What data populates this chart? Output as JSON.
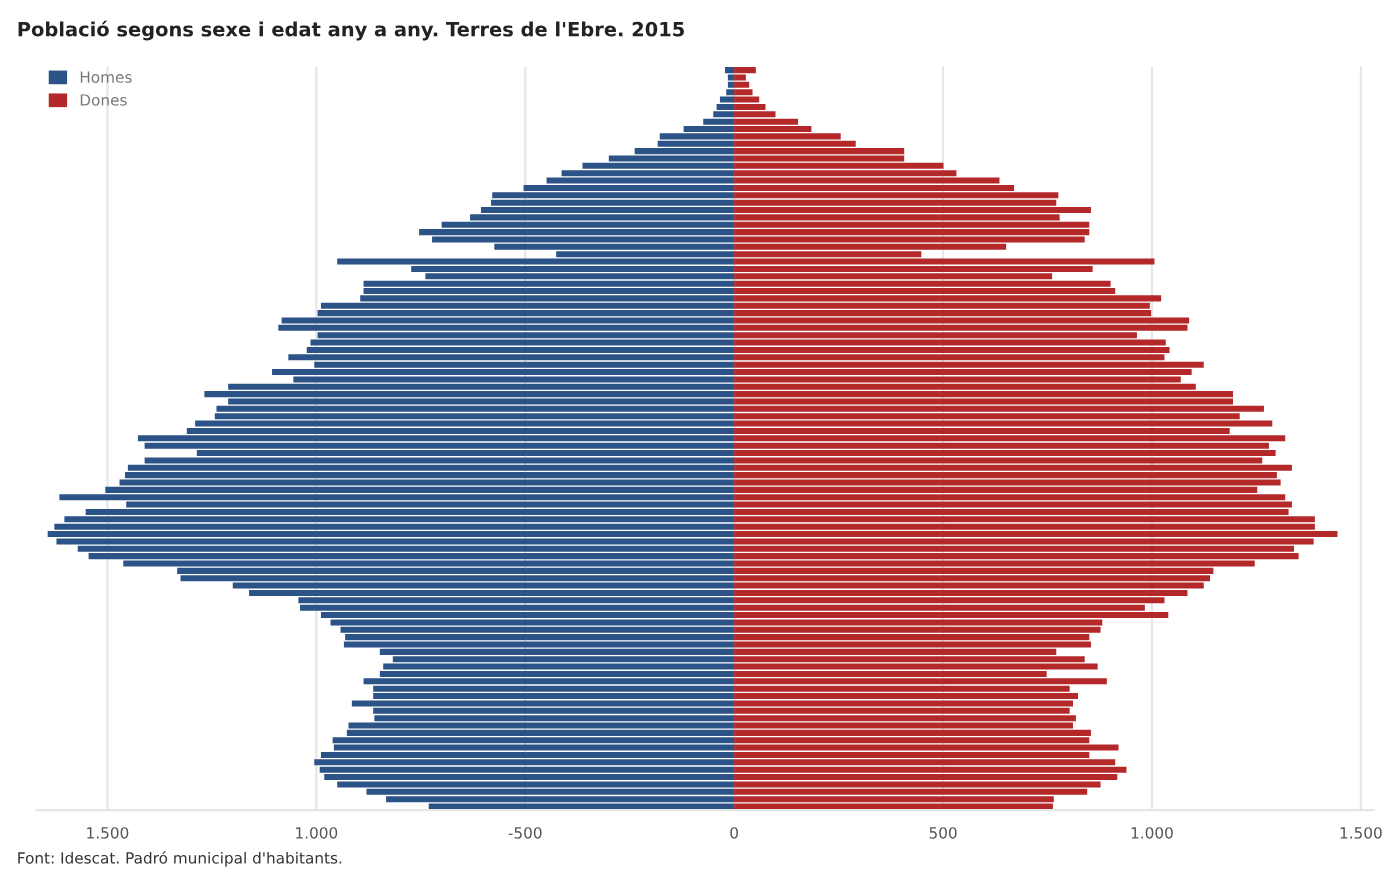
{
  "chart_data": {
    "type": "bar",
    "orientation": "horizontal",
    "title": "Població segons sexe i edat any a any. Terres de l'Ebre. 2015",
    "categories": [
      null,
      null,
      null,
      null,
      null,
      null,
      null,
      null,
      null,
      null,
      null,
      null,
      null,
      null,
      null,
      null,
      null,
      null,
      null,
      null,
      null,
      null,
      null,
      null,
      null,
      null,
      null,
      null,
      null,
      null,
      null,
      null,
      null,
      null,
      null,
      null,
      null,
      null,
      null,
      null,
      null,
      null,
      null,
      null,
      null,
      null,
      null,
      null,
      null,
      null,
      null,
      null,
      null,
      null,
      null,
      null,
      null,
      null,
      null,
      null,
      null,
      null,
      null,
      null,
      null,
      null,
      null,
      null,
      null,
      null,
      null,
      null,
      null,
      null,
      null,
      null,
      null,
      null,
      null,
      null,
      null,
      null,
      null,
      null,
      null,
      null,
      null,
      null,
      null,
      null,
      null,
      null,
      null,
      null,
      null,
      null,
      null,
      null,
      null,
      null,
      null
    ],
    "series": [
      {
        "name": "Homes",
        "color": "#2b5387",
        "values": [
          -22,
          -15,
          -15,
          -19,
          -34,
          -42,
          -50,
          -74,
          -121,
          -178,
          -183,
          -238,
          -300,
          -363,
          -413,
          -449,
          -504,
          -579,
          -582,
          -606,
          -632,
          -700,
          -754,
          -723,
          -574,
          -426,
          -950,
          -773,
          -739,
          -887,
          -887,
          -895,
          -989,
          -997,
          -1083,
          -1091,
          -997,
          -1014,
          -1023,
          -1067,
          -1005,
          -1106,
          -1055,
          -1211,
          -1268,
          -1211,
          -1239,
          -1243,
          -1290,
          -1310,
          -1427,
          -1411,
          -1286,
          -1411,
          -1451,
          -1458,
          -1471,
          -1505,
          -1615,
          -1455,
          -1552,
          -1603,
          -1627,
          -1643,
          -1622,
          -1571,
          -1545,
          -1462,
          -1333,
          -1325,
          -1200,
          -1161,
          -1043,
          -1039,
          -989,
          -966,
          -942,
          -931,
          -934,
          -848,
          -817,
          -840,
          -848,
          -887,
          -864,
          -864,
          -915,
          -864,
          -861,
          -923,
          -927,
          -961,
          -958,
          -989,
          -1005,
          -992,
          -981,
          -950,
          -880,
          -833,
          -731
        ]
      },
      {
        "name": "Dones",
        "color": "#b5282a",
        "values": [
          52,
          28,
          36,
          44,
          60,
          75,
          99,
          153,
          185,
          255,
          291,
          407,
          407,
          501,
          532,
          635,
          670,
          776,
          771,
          854,
          779,
          850,
          850,
          839,
          651,
          448,
          1006,
          858,
          761,
          901,
          912,
          1022,
          995,
          998,
          1089,
          1085,
          964,
          1033,
          1042,
          1030,
          1124,
          1095,
          1069,
          1105,
          1194,
          1194,
          1268,
          1210,
          1288,
          1186,
          1319,
          1280,
          1296,
          1264,
          1335,
          1299,
          1308,
          1252,
          1319,
          1335,
          1327,
          1390,
          1390,
          1444,
          1387,
          1340,
          1351,
          1246,
          1147,
          1139,
          1124,
          1085,
          1030,
          983,
          1039,
          881,
          877,
          850,
          854,
          771,
          839,
          870,
          748,
          892,
          803,
          823,
          811,
          803,
          818,
          811,
          854,
          850,
          920,
          850,
          912,
          939,
          917,
          877,
          845,
          765,
          763
        ]
      }
    ],
    "xlim": [
      -1670,
      1530
    ],
    "stacked": true,
    "xticks": [
      {
        "value": -1500,
        "label": "1.500"
      },
      {
        "value": -1000,
        "label": "1.000"
      },
      -500,
      0,
      500,
      {
        "value": 1000,
        "label": "1.000"
      },
      {
        "value": 1500,
        "label": "1.500"
      }
    ],
    "grid": "x",
    "legend": "top left",
    "annotations": [
      "Font: Idescat. Padró municipal d'habitants."
    ]
  }
}
